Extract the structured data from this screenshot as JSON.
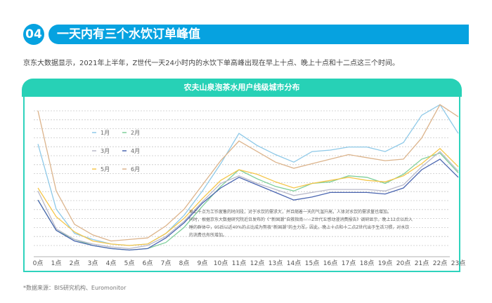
{
  "header": {
    "number": "04",
    "title": "一天内有三个水饮订单峰值"
  },
  "description": "京东大数据显示，2021年上半年，Z世代一天24小时内的水饮下单高峰出现在早上十点、晚上十点和十二点这三个时间。",
  "card_title": "农夫山泉泡茶水用户线级城市分布",
  "note_lines": [
    "早上十点为工作疲惫的时间段，对于水饮的需求大，并且随着一天的气温升高，人体对水饮的需求量也增加。",
    "同时，根据京东大数据研究院近日发布的《“新国潮”自救指南——Z世代五感动漫消费报告》调研显示，晚上12点以后入",
    "睡的群体中，95后以近40%的占比成为熬夜“新国潮”的主力军。因此，晚上十点和十二点Z世代出于生活习惯，对水饮",
    "的消费也有所增加。"
  ],
  "source": "*数据来源：BIS研究机构、Euromonitor",
  "chart_data": {
    "type": "line",
    "title": "农夫山泉泡茶水用户线级城市分布",
    "xlabel": "",
    "ylabel": "",
    "x": [
      "0点",
      "1点",
      "2点",
      "3点",
      "4点",
      "5点",
      "6点",
      "7点",
      "8点",
      "9点",
      "10点",
      "11点",
      "12点",
      "13点",
      "14点",
      "15点",
      "16点",
      "17点",
      "18点",
      "19点",
      "20点",
      "21点",
      "22点",
      "23点"
    ],
    "ylim": [
      0,
      100
    ],
    "grid": true,
    "y_ticks_labeled": false,
    "legend_position": "top-left",
    "series": [
      {
        "name": "1月",
        "color": "#8ec9e8",
        "values": [
          73,
          30,
          14,
          10,
          7,
          6,
          7,
          14,
          26,
          42,
          60,
          80,
          72,
          66,
          61,
          68,
          69,
          71,
          71,
          68,
          74,
          92,
          99,
          80
        ]
      },
      {
        "name": "2月",
        "color": "#7fcf9a",
        "values": [
          36,
          16,
          10,
          6,
          4,
          3,
          4,
          8,
          18,
          32,
          45,
          56,
          50,
          45,
          42,
          47,
          48,
          52,
          51,
          47,
          53,
          63,
          67,
          54
        ]
      },
      {
        "name": "3月",
        "color": "#b9b9c9",
        "values": [
          42,
          17,
          10,
          7,
          5,
          4,
          6,
          12,
          22,
          35,
          47,
          52,
          47,
          43,
          39,
          41,
          43,
          43,
          43,
          42,
          46,
          58,
          68,
          55
        ]
      },
      {
        "name": "4月",
        "color": "#4a65b0",
        "values": [
          36,
          16,
          9,
          6,
          4,
          3,
          4,
          11,
          21,
          34,
          44,
          51,
          46,
          41,
          36,
          38,
          41,
          41,
          41,
          40,
          44,
          56,
          63,
          51
        ]
      },
      {
        "name": "5月",
        "color": "#f5c64a",
        "values": [
          44,
          25,
          15,
          9,
          7,
          6,
          7,
          14,
          24,
          37,
          49,
          56,
          53,
          48,
          44,
          47,
          49,
          51,
          49,
          48,
          52,
          60,
          70,
          58
        ]
      },
      {
        "name": "6月",
        "color": "#dcb48c",
        "values": [
          95,
          42,
          20,
          13,
          9,
          10,
          11,
          19,
          30,
          46,
          62,
          75,
          68,
          61,
          57,
          60,
          63,
          66,
          64,
          62,
          63,
          77,
          99,
          91
        ]
      }
    ]
  }
}
